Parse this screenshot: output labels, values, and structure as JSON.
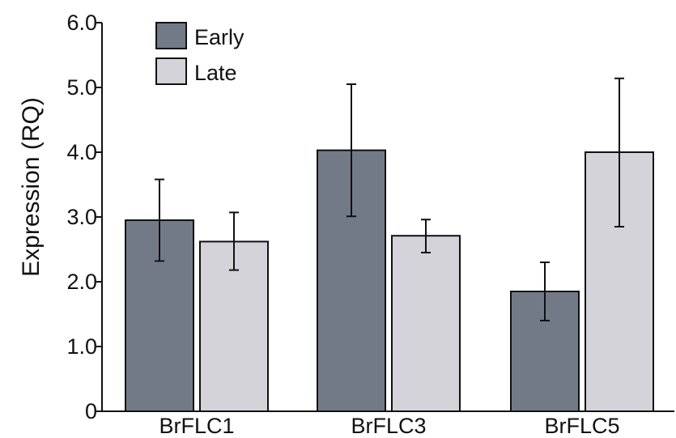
{
  "chart_data": {
    "type": "bar",
    "title": "",
    "xlabel": "",
    "ylabel": "Expression (RQ)",
    "ylim": [
      0,
      6.0
    ],
    "yticks": [
      {
        "value": 0,
        "label": "0"
      },
      {
        "value": 1,
        "label": "1.0"
      },
      {
        "value": 2,
        "label": "2.0"
      },
      {
        "value": 3,
        "label": "3.0"
      },
      {
        "value": 4,
        "label": "4.0"
      },
      {
        "value": 5,
        "label": "5.0"
      },
      {
        "value": 6,
        "label": "6.0"
      }
    ],
    "categories": [
      "BrFLC1",
      "BrFLC3",
      "BrFLC5"
    ],
    "series": [
      {
        "name": "Early",
        "color": "#737a87",
        "values": [
          2.95,
          4.03,
          1.85
        ],
        "err_low": [
          2.32,
          3.01,
          1.4
        ],
        "err_high": [
          3.58,
          5.05,
          2.3
        ]
      },
      {
        "name": "Late",
        "color": "#d4d3d9",
        "values": [
          2.62,
          2.71,
          4.0
        ],
        "err_low": [
          2.18,
          2.45,
          2.85
        ],
        "err_high": [
          3.07,
          2.96,
          5.14
        ]
      }
    ],
    "legend_position": "top-left",
    "grid": false
  }
}
